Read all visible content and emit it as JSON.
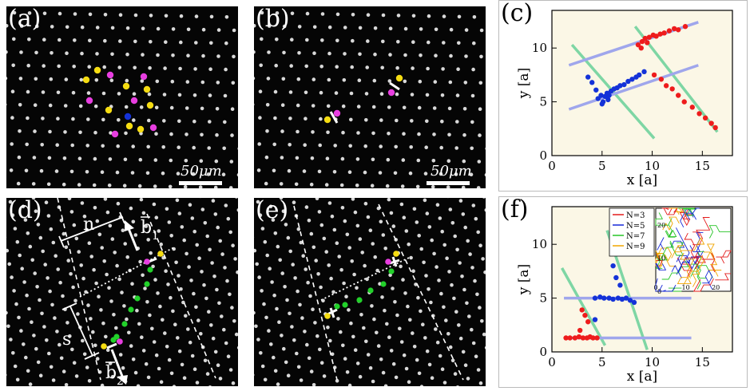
{
  "panels": {
    "a": {
      "label": "(a)",
      "scalebar": "50μm"
    },
    "b": {
      "label": "(b)",
      "scalebar": "50μm"
    },
    "c": {
      "label": "(c)"
    },
    "d": {
      "label": "(d)",
      "annotations": {
        "n": "n",
        "s": "s",
        "b1": "b",
        "b1_sub": "1",
        "b2": "b",
        "b2_sub": "2"
      }
    },
    "e": {
      "label": "(e)"
    },
    "f": {
      "label": "(f)"
    }
  },
  "colors": {
    "red": "#ee1c1c",
    "blue": "#1432d8",
    "green_line": "#7ed6a4",
    "blue_line": "#9fa6ec",
    "magenta": "#e83ee0",
    "yellow": "#f5dc12",
    "plot_bg": "#fbf7e6"
  },
  "chart_data": [
    {
      "type": "scatter",
      "panel": "c",
      "xlabel": "x [a]",
      "ylabel": "y [a]",
      "xlim": [
        0,
        18
      ],
      "ylim": [
        0,
        13.5
      ],
      "xticks": [
        0,
        5,
        10,
        15
      ],
      "yticks": [
        0,
        5,
        10
      ],
      "lines": [
        {
          "color": "green",
          "x": [
            2,
            10.2
          ],
          "y": [
            10.3,
            1.6
          ]
        },
        {
          "color": "green",
          "x": [
            8.3,
            16.5
          ],
          "y": [
            12,
            2.2
          ]
        },
        {
          "color": "blue",
          "x": [
            1.7,
            14.6
          ],
          "y": [
            8.4,
            12.4
          ]
        },
        {
          "color": "blue",
          "x": [
            1.7,
            14.6
          ],
          "y": [
            4.3,
            8.4
          ]
        }
      ],
      "series": [
        {
          "color": "red",
          "x": [
            8.6,
            9.0,
            9.3,
            9.7,
            10.1,
            10.4,
            10.8,
            11.2,
            11.7,
            12.2,
            12.6,
            13.3,
            10.2,
            10.9,
            11.4,
            12.0,
            12.6,
            13.2,
            14.0,
            14.7,
            15.3,
            15.9,
            16.3,
            8.9,
            9.5
          ],
          "y": [
            10.3,
            10.6,
            10.9,
            11.0,
            11.2,
            11.1,
            11.3,
            11.4,
            11.6,
            11.8,
            11.7,
            12.0,
            7.5,
            7.1,
            6.5,
            6.2,
            5.6,
            5.0,
            4.5,
            3.9,
            3.5,
            3.0,
            2.6,
            10.0,
            10.5
          ]
        },
        {
          "color": "blue",
          "x": [
            3.6,
            4.0,
            4.4,
            4.6,
            4.9,
            5.1,
            5.3,
            5.5,
            5.7,
            5.9,
            6.2,
            6.5,
            6.8,
            7.2,
            7.6,
            8.0,
            8.4,
            8.7,
            9.2,
            5.0,
            5.6
          ],
          "y": [
            7.3,
            6.8,
            6.1,
            5.3,
            5.6,
            5.0,
            5.5,
            5.8,
            5.6,
            6.0,
            6.2,
            6.3,
            6.5,
            6.6,
            6.9,
            7.1,
            7.3,
            7.5,
            7.8,
            4.8,
            5.2
          ]
        }
      ]
    },
    {
      "type": "scatter",
      "panel": "f",
      "xlabel": "x [a]",
      "ylabel": "y [a]",
      "xlim": [
        0,
        18
      ],
      "ylim": [
        0,
        13.5
      ],
      "xticks": [
        0,
        5,
        10,
        15
      ],
      "yticks": [
        0,
        5,
        10
      ],
      "lines": [
        {
          "color": "green",
          "x": [
            1.0,
            5.3
          ],
          "y": [
            7.8,
            0.6
          ]
        },
        {
          "color": "green",
          "x": [
            5.5,
            9.5
          ],
          "y": [
            11.3,
            0.2
          ]
        },
        {
          "color": "blue",
          "x": [
            1.2,
            13.9
          ],
          "y": [
            5.0,
            5.0
          ]
        },
        {
          "color": "blue",
          "x": [
            1.2,
            13.9
          ],
          "y": [
            1.3,
            1.3
          ]
        }
      ],
      "series": [
        {
          "color": "red",
          "x": [
            1.4,
            1.8,
            2.3,
            2.7,
            3.1,
            3.5,
            3.8,
            4.1,
            4.5,
            3.0,
            3.3,
            3.6,
            2.8
          ],
          "y": [
            1.3,
            1.3,
            1.3,
            1.4,
            1.3,
            1.3,
            1.4,
            1.3,
            1.3,
            3.9,
            3.4,
            2.8,
            2.0
          ]
        },
        {
          "color": "blue",
          "x": [
            4.3,
            4.8,
            5.2,
            5.7,
            6.1,
            6.6,
            7.0,
            7.4,
            7.8,
            8.2,
            6.1,
            6.4,
            6.8,
            4.3
          ],
          "y": [
            5.0,
            5.1,
            5.0,
            5.0,
            4.9,
            5.0,
            4.9,
            5.0,
            4.8,
            4.6,
            8.0,
            6.9,
            6.2,
            3.0
          ]
        }
      ],
      "inset": {
        "legend": [
          "N=3",
          "N=5",
          "N=7",
          "N=9"
        ],
        "legend_colors": [
          "#e31b1b",
          "#1528d8",
          "#27c427",
          "#f0a500"
        ],
        "xticks": [
          0,
          10,
          20
        ],
        "yticks": [
          0,
          10,
          20
        ],
        "xlim": [
          0,
          25
        ],
        "ylim": [
          0,
          25
        ]
      }
    }
  ]
}
